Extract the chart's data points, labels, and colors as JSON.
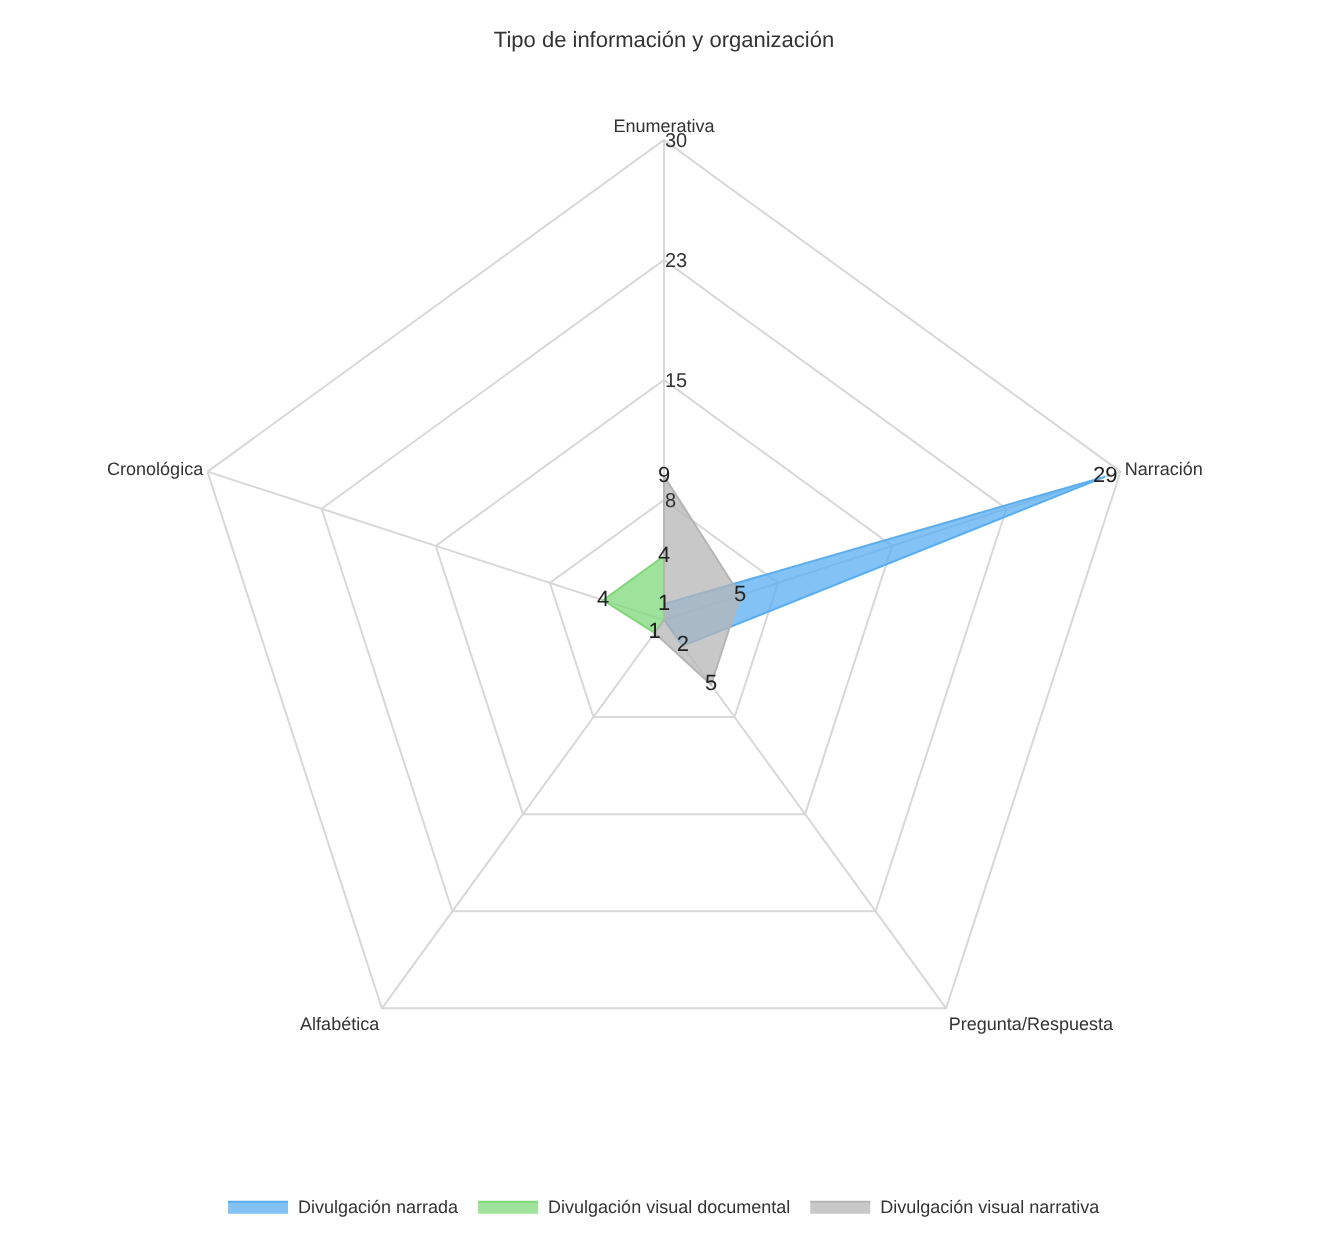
{
  "chart_data": {
    "type": "radar",
    "title": "Tipo de información y organización",
    "categories": [
      "Enumerativa",
      "Narración",
      "Pregunta/Respuesta",
      "Alfabética",
      "Cronológica"
    ],
    "series": [
      {
        "name": "Divulgación narrada",
        "color": "#5aaef0",
        "values": [
          1,
          29,
          2,
          0,
          0
        ],
        "value_labels": [
          "1",
          "29",
          "2",
          null,
          null
        ]
      },
      {
        "name": "Divulgación visual documental",
        "color": "#7ed87a",
        "values": [
          4,
          0,
          0,
          1,
          4
        ],
        "value_labels": [
          "4",
          null,
          null,
          "1",
          "4"
        ]
      },
      {
        "name": "Divulgación visual narrativa",
        "color": "#b5b5b5",
        "values": [
          9,
          5,
          5,
          1,
          0
        ],
        "value_labels": [
          "9",
          "5",
          "5",
          null,
          null
        ]
      }
    ],
    "ylim": [
      0,
      30
    ],
    "yticks": [
      {
        "value": 7.5,
        "label": "8"
      },
      15,
      {
        "value": 22.5,
        "label": "23"
      },
      30
    ],
    "legend": "bottom",
    "grid": true
  }
}
